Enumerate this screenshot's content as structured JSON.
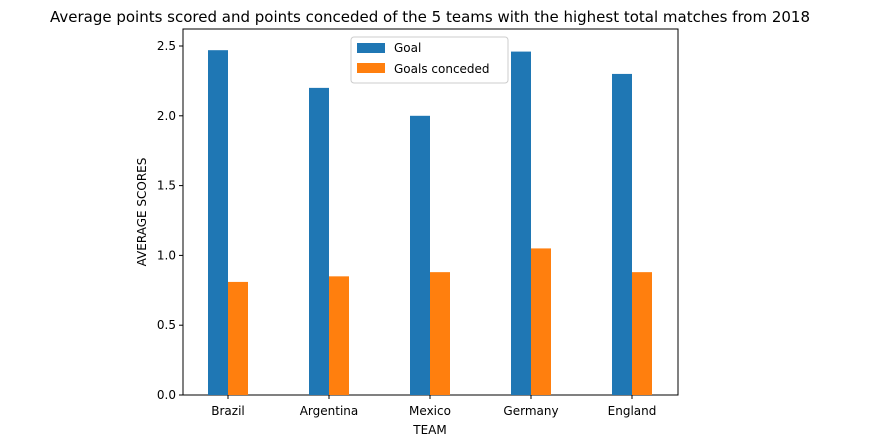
{
  "chart_data": {
    "type": "bar",
    "title": "Average points scored and points conceded of the 5 teams with the highest total matches from 2018",
    "xlabel": "TEAM",
    "ylabel": "AVERAGE SCORES",
    "categories": [
      "Brazil",
      "Argentina",
      "Mexico",
      "Germany",
      "England"
    ],
    "series": [
      {
        "name": "Goal",
        "color": "#1f77b4",
        "values": [
          2.47,
          2.2,
          2.0,
          2.46,
          2.3
        ]
      },
      {
        "name": "Goals conceded",
        "color": "#ff7f0e",
        "values": [
          0.81,
          0.85,
          0.88,
          1.05,
          0.88
        ]
      }
    ],
    "ylim": [
      0,
      2.5
    ],
    "yticks": [
      "0.0",
      "0.5",
      "1.0",
      "1.5",
      "2.0",
      "2.5"
    ],
    "grid": false,
    "legend_position": "top-center"
  }
}
